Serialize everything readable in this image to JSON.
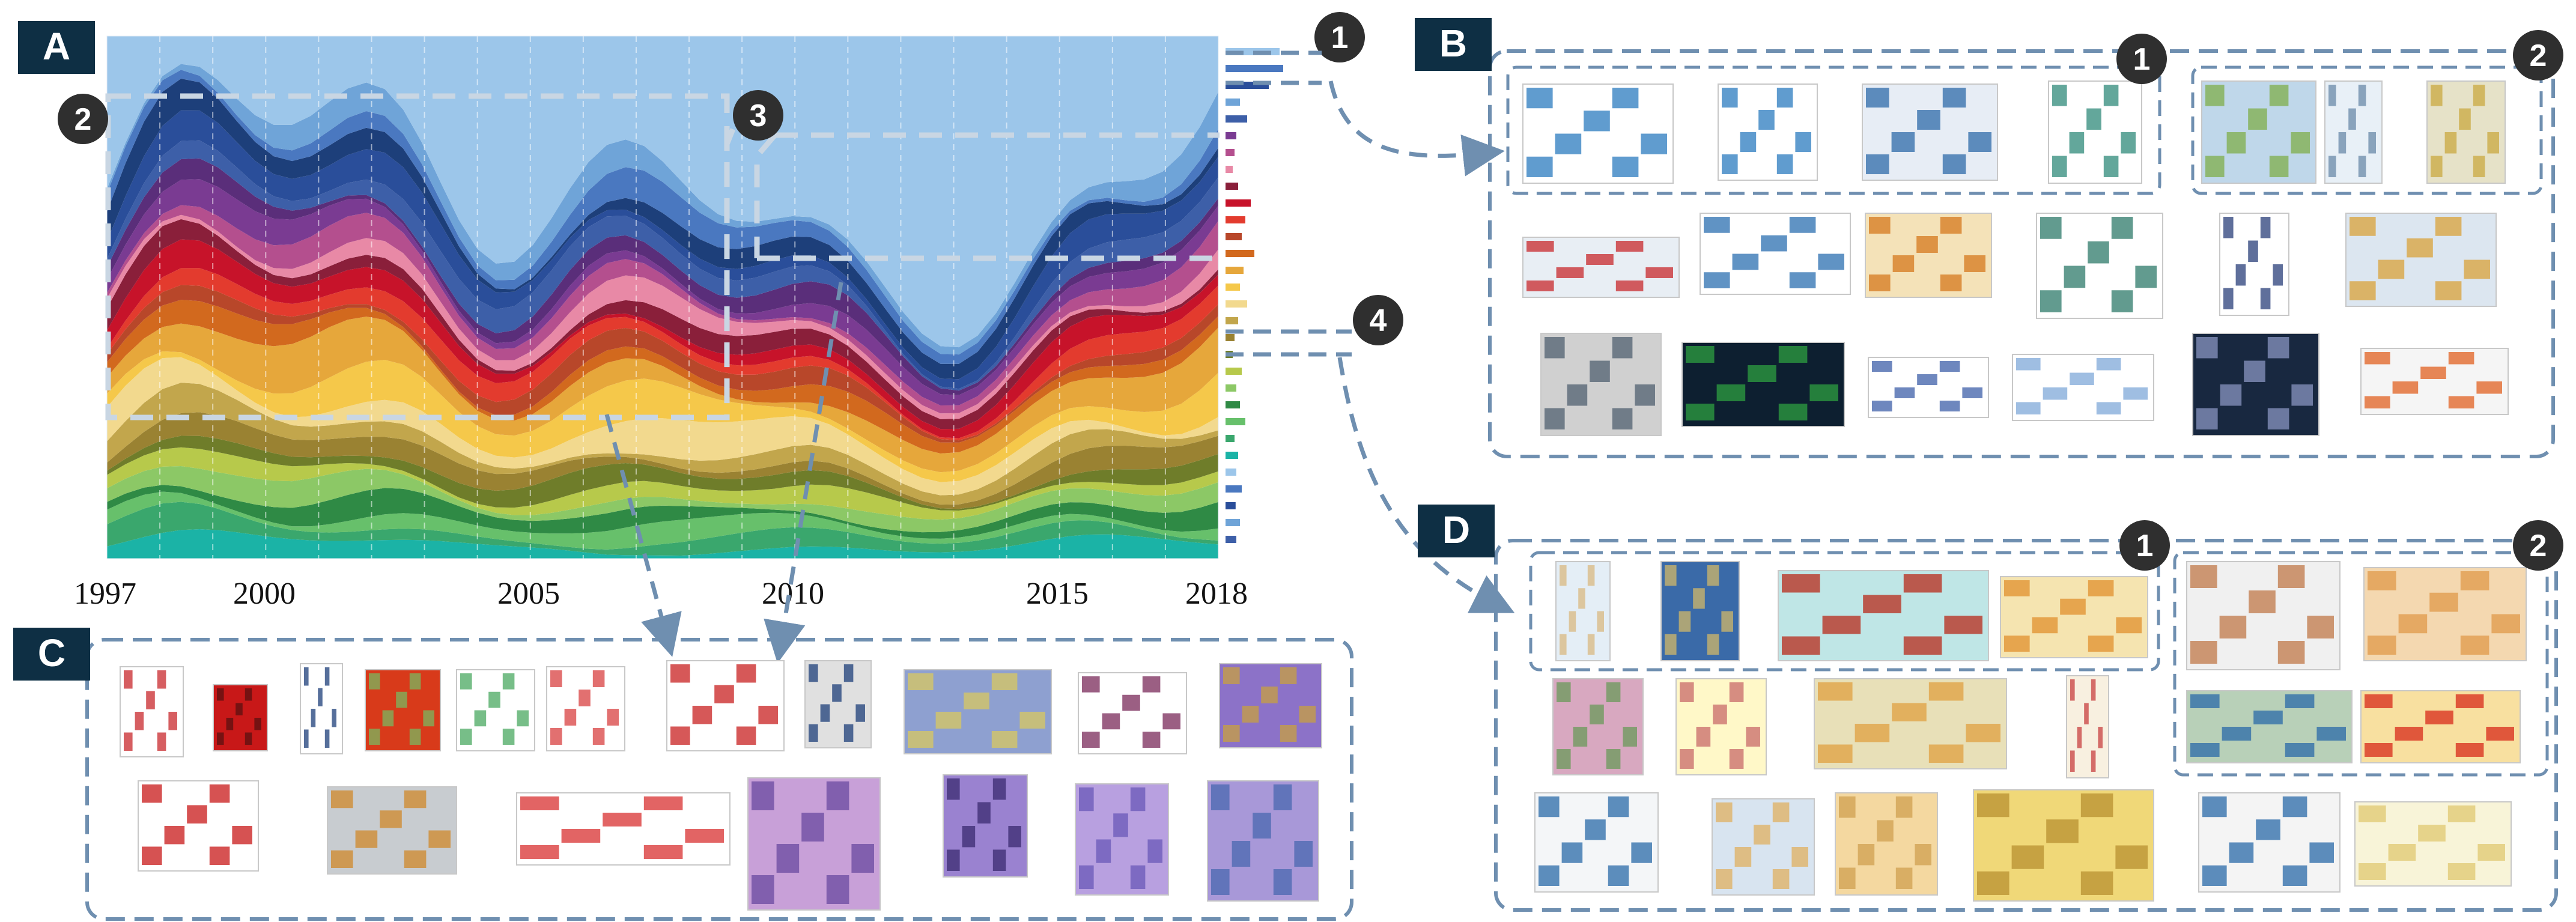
{
  "panels": {
    "A": {
      "label": "A"
    },
    "B": {
      "label": "B"
    },
    "C": {
      "label": "C"
    },
    "D": {
      "label": "D"
    }
  },
  "axis": {
    "years": [
      "1997",
      "2000",
      "2005",
      "2010",
      "2015",
      "2018"
    ]
  },
  "markers": [
    "1",
    "2",
    "3",
    "4"
  ],
  "colors": {
    "panel_label_bg": "#0e2f44",
    "dashed_box": "#6f8fb0",
    "highlight_box": "#c9d6e3",
    "marker_bg": "#2f2f2f"
  },
  "chart_data": {
    "type": "area",
    "x": [
      "1997",
      "2018"
    ],
    "title": "",
    "xlabel": "",
    "ylabel": "",
    "note": ""
  }
}
